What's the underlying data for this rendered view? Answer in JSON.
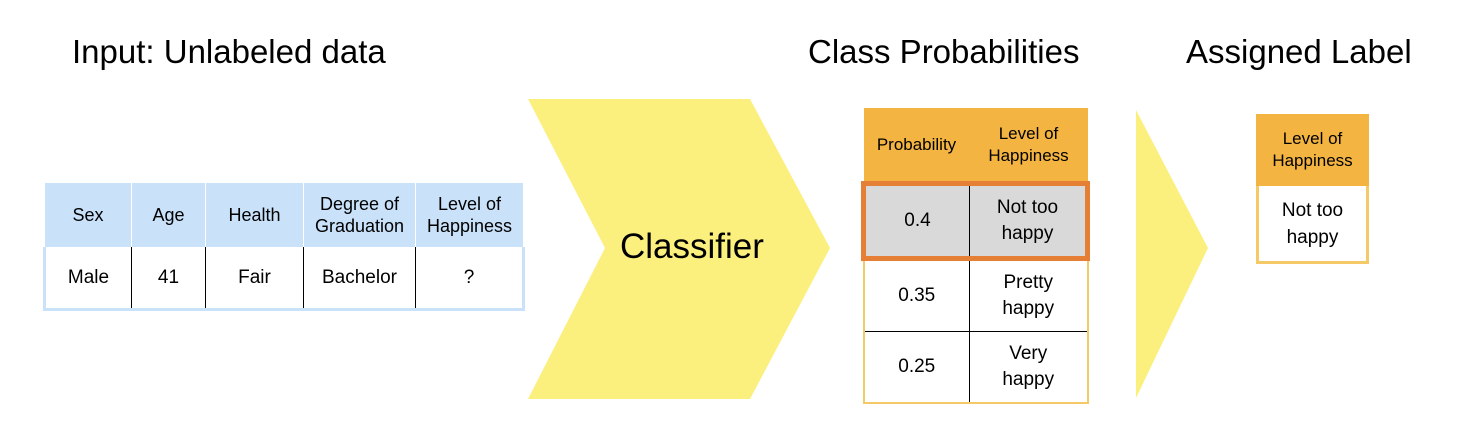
{
  "headings": {
    "input": "Input: Unlabeled data",
    "class_probabilities": "Class Probabilities",
    "assigned_label": "Assigned Label"
  },
  "input_table": {
    "headers": [
      "Sex",
      "Age",
      "Health",
      "Degree of\nGraduation",
      "Level of\nHappiness"
    ],
    "row": [
      "Male",
      "41",
      "Fair",
      "Bachelor",
      "?"
    ]
  },
  "classifier": {
    "label": "Classifier"
  },
  "probability_table": {
    "headers": [
      "Probability",
      "Level of\nHappiness"
    ],
    "rows": [
      {
        "probability": "0.4",
        "level": "Not too\nhappy"
      },
      {
        "probability": "0.35",
        "level": "Pretty\nhappy"
      },
      {
        "probability": "0.25",
        "level": "Very\nhappy"
      }
    ],
    "selected_row": "Not too\nhappy"
  },
  "assigned": {
    "header": "Level of\nHappiness",
    "value": "Not too\nhappy"
  },
  "colors": {
    "input_header_bg": "#c9e2fa",
    "arrow_fill": "#fbef7e",
    "prob_header_bg": "#f3b442",
    "selected_row_bg": "#d9d9d9",
    "selected_outline": "#e57f35",
    "table_border": "#f5c868"
  }
}
